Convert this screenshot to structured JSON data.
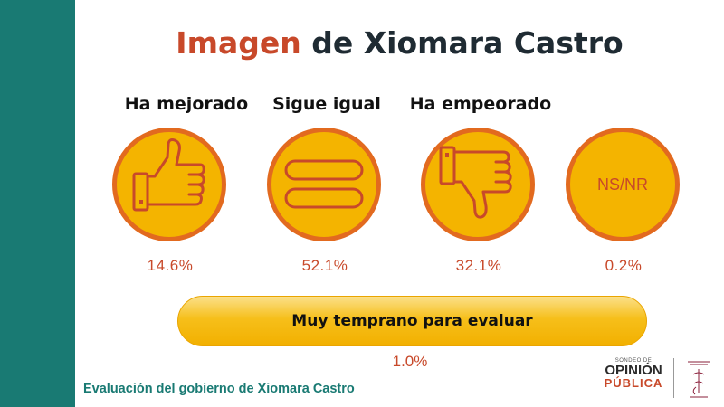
{
  "title": {
    "accent": "Imagen",
    "rest": " de Xiomara Castro"
  },
  "options": [
    {
      "label": "Ha mejorado",
      "icon": "thumbs-up-icon",
      "percent": "14.6%"
    },
    {
      "label": "Sigue igual",
      "icon": "equals-icon",
      "percent": "52.1%"
    },
    {
      "label": "Ha empeorado",
      "icon": "thumbs-down-icon",
      "percent": "32.1%"
    },
    {
      "label": "",
      "icon": "ns-nr-badge",
      "badge_text": "NS/NR",
      "percent": "0.2%"
    }
  ],
  "banner": {
    "label": "Muy temprano para evaluar",
    "percent": "1.0%"
  },
  "footer": {
    "text": "Evaluación del gobierno de Xiomara Castro"
  },
  "logo": {
    "line1": "SONDEO DE",
    "line2": "OPINIÓN",
    "line3": "PÚBLICA"
  },
  "colors": {
    "sidebar": "#197a73",
    "accent": "#c8492a",
    "circle_fill": "#f4b400",
    "circle_border": "#e26a1f",
    "title_text": "#1f2b33"
  }
}
